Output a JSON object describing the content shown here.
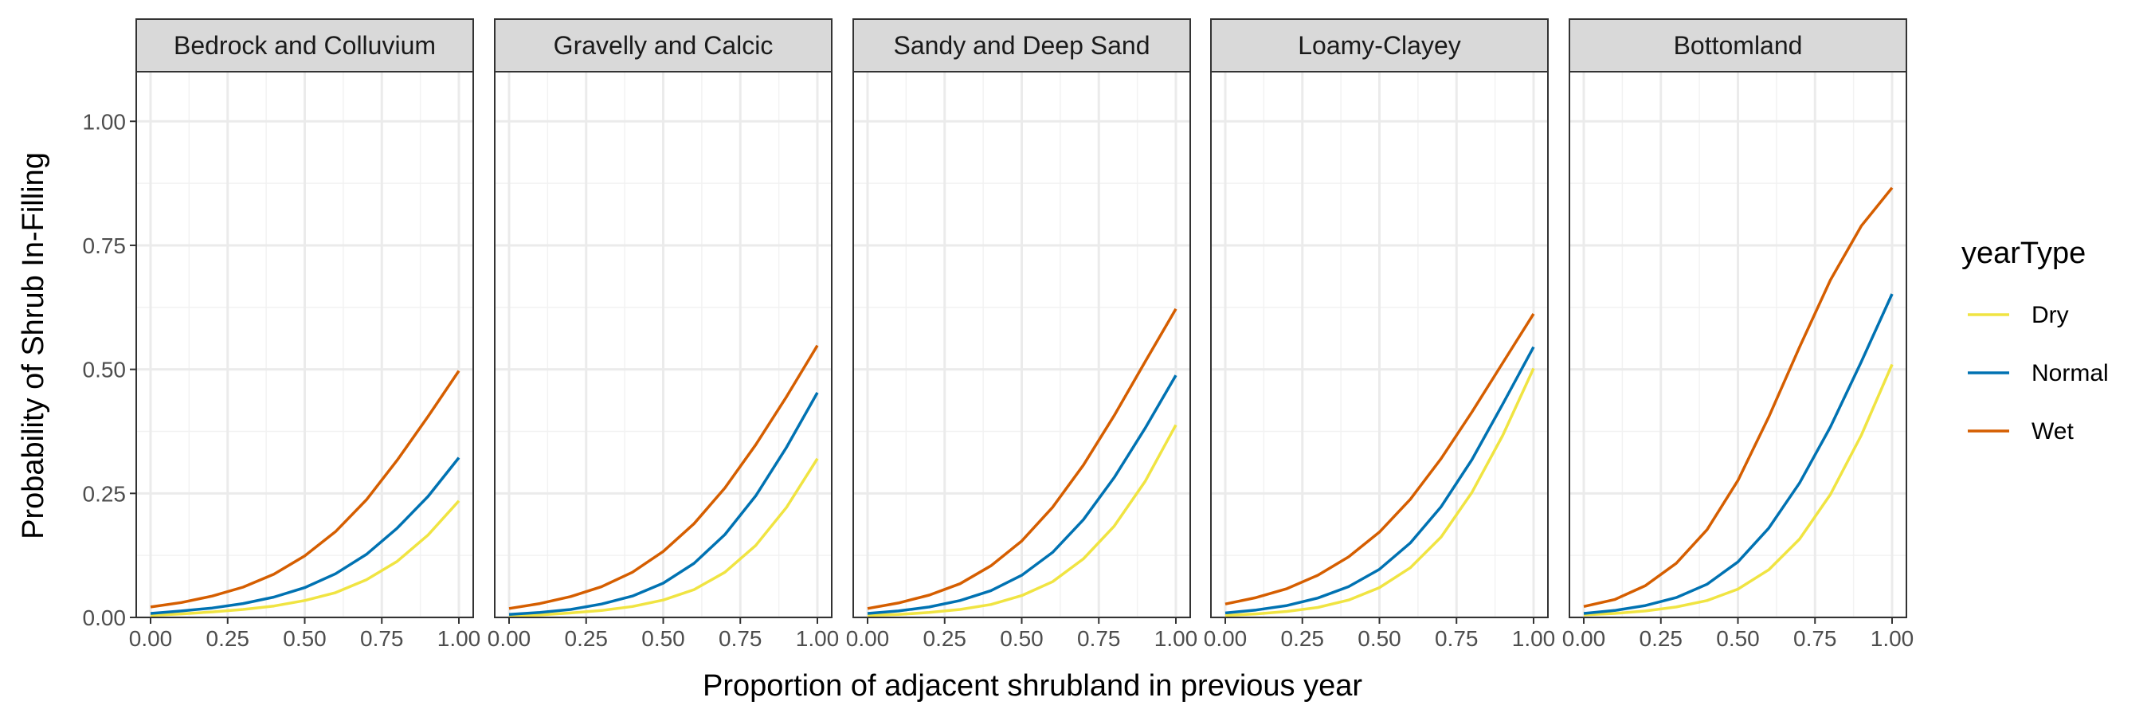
{
  "chart_data": {
    "type": "line",
    "xlabel": "Proportion of adjacent shrubland in previous year",
    "ylabel": "Probability of Shrub In-Filling",
    "xlim": [
      0,
      1
    ],
    "ylim": [
      0,
      1.1
    ],
    "x_ticks": [
      0,
      0.25,
      0.5,
      0.75,
      1.0
    ],
    "x_tick_labels": [
      "0.00",
      "0.25",
      "0.50",
      "0.75",
      "1.00"
    ],
    "y_ticks": [
      0,
      0.25,
      0.5,
      0.75,
      1.0
    ],
    "y_tick_labels": [
      "0.00",
      "0.25",
      "0.50",
      "0.75",
      "1.00"
    ],
    "grid": true,
    "legend": {
      "title": "yearType",
      "placement": "right",
      "entries": [
        {
          "name": "Dry",
          "color": "#f0e442"
        },
        {
          "name": "Normal",
          "color": "#0072b2"
        },
        {
          "name": "Wet",
          "color": "#d55e00"
        }
      ]
    },
    "x": [
      0,
      0.1,
      0.2,
      0.3,
      0.4,
      0.5,
      0.6,
      0.7,
      0.8,
      0.9,
      1.0
    ],
    "panels": [
      {
        "title": "Bedrock and Colluvium",
        "series": [
          {
            "name": "Dry",
            "values": [
              0.004,
              0.007,
              0.011,
              0.016,
              0.023,
              0.034,
              0.05,
              0.076,
              0.113,
              0.166,
              0.235
            ]
          },
          {
            "name": "Normal",
            "values": [
              0.008,
              0.013,
              0.019,
              0.028,
              0.041,
              0.06,
              0.088,
              0.127,
              0.18,
              0.244,
              0.322
            ]
          },
          {
            "name": "Wet",
            "values": [
              0.021,
              0.03,
              0.043,
              0.061,
              0.087,
              0.124,
              0.173,
              0.237,
              0.317,
              0.405,
              0.497
            ]
          }
        ]
      },
      {
        "title": "Gravelly and Calcic",
        "series": [
          {
            "name": "Dry",
            "values": [
              0.003,
              0.005,
              0.009,
              0.014,
              0.022,
              0.035,
              0.056,
              0.091,
              0.145,
              0.222,
              0.32
            ]
          },
          {
            "name": "Normal",
            "values": [
              0.006,
              0.01,
              0.016,
              0.027,
              0.043,
              0.069,
              0.109,
              0.167,
              0.245,
              0.343,
              0.453
            ]
          },
          {
            "name": "Wet",
            "values": [
              0.018,
              0.028,
              0.042,
              0.062,
              0.091,
              0.133,
              0.189,
              0.261,
              0.348,
              0.445,
              0.548
            ]
          }
        ]
      },
      {
        "title": "Sandy and Deep Sand",
        "series": [
          {
            "name": "Dry",
            "values": [
              0.004,
              0.006,
              0.01,
              0.016,
              0.026,
              0.044,
              0.072,
              0.118,
              0.184,
              0.274,
              0.388
            ]
          },
          {
            "name": "Normal",
            "values": [
              0.008,
              0.013,
              0.021,
              0.034,
              0.054,
              0.085,
              0.131,
              0.197,
              0.282,
              0.381,
              0.488
            ]
          },
          {
            "name": "Wet",
            "values": [
              0.018,
              0.029,
              0.045,
              0.068,
              0.104,
              0.154,
              0.222,
              0.307,
              0.407,
              0.515,
              0.622
            ]
          }
        ]
      },
      {
        "title": "Loamy-Clayey",
        "series": [
          {
            "name": "Dry",
            "values": [
              0.004,
              0.007,
              0.012,
              0.02,
              0.035,
              0.06,
              0.1,
              0.162,
              0.252,
              0.367,
              0.502
            ]
          },
          {
            "name": "Normal",
            "values": [
              0.009,
              0.015,
              0.024,
              0.039,
              0.062,
              0.097,
              0.15,
              0.223,
              0.318,
              0.43,
              0.545
            ]
          },
          {
            "name": "Wet",
            "values": [
              0.027,
              0.04,
              0.058,
              0.085,
              0.122,
              0.172,
              0.238,
              0.32,
              0.414,
              0.513,
              0.612
            ]
          }
        ]
      },
      {
        "title": "Bottomland",
        "series": [
          {
            "name": "Dry",
            "values": [
              0.005,
              0.008,
              0.013,
              0.021,
              0.034,
              0.057,
              0.096,
              0.158,
              0.248,
              0.367,
              0.51
            ]
          },
          {
            "name": "Normal",
            "values": [
              0.008,
              0.014,
              0.024,
              0.04,
              0.067,
              0.112,
              0.18,
              0.271,
              0.384,
              0.515,
              0.652
            ]
          },
          {
            "name": "Wet",
            "values": [
              0.022,
              0.036,
              0.064,
              0.109,
              0.177,
              0.276,
              0.404,
              0.545,
              0.68,
              0.789,
              0.866
            ]
          }
        ]
      }
    ]
  }
}
